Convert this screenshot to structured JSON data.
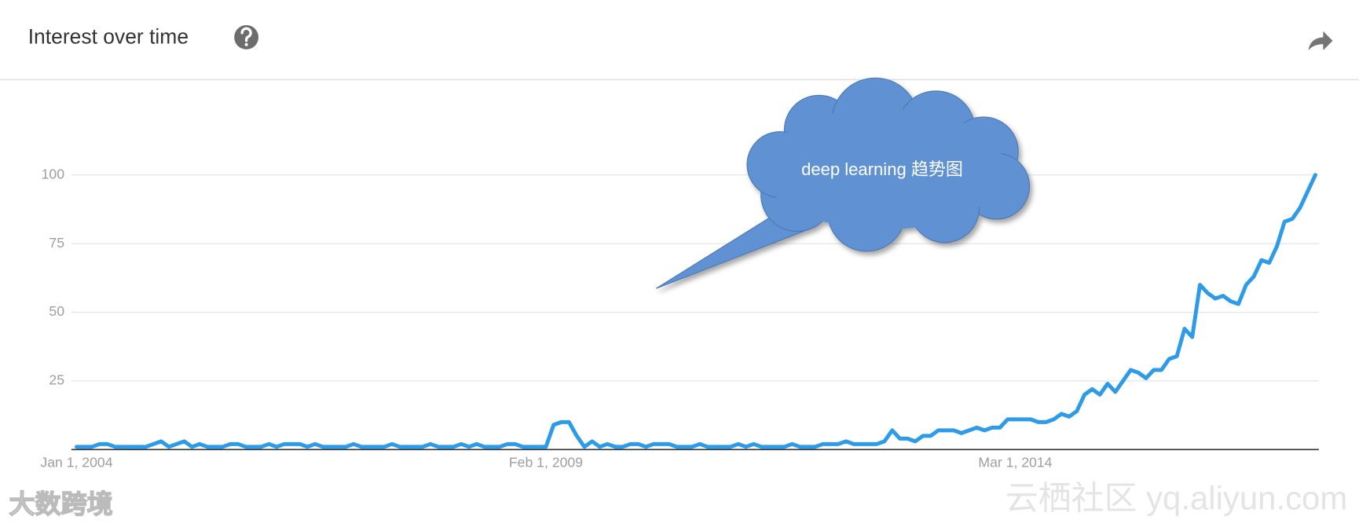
{
  "header": {
    "title": "Interest over time"
  },
  "chart_data": {
    "type": "line",
    "annotation": "deep learning 趋势图",
    "categories": [
      "Jan 1, 2004",
      null,
      null,
      null,
      null,
      null,
      null,
      null,
      null,
      null,
      null,
      null,
      null,
      null,
      null,
      null,
      null,
      null,
      null,
      null,
      null,
      null,
      null,
      null,
      null,
      null,
      null,
      null,
      null,
      null,
      null,
      null,
      null,
      null,
      null,
      null,
      null,
      null,
      null,
      null,
      null,
      null,
      null,
      null,
      null,
      null,
      null,
      null,
      null,
      null,
      null,
      null,
      null,
      null,
      null,
      null,
      null,
      null,
      null,
      null,
      null,
      "Feb 1, 2009",
      null,
      null,
      null,
      null,
      null,
      null,
      null,
      null,
      null,
      null,
      null,
      null,
      null,
      null,
      null,
      null,
      null,
      null,
      null,
      null,
      null,
      null,
      null,
      null,
      null,
      null,
      null,
      null,
      null,
      null,
      null,
      null,
      null,
      null,
      null,
      null,
      null,
      null,
      null,
      null,
      null,
      null,
      null,
      null,
      null,
      null,
      null,
      null,
      null,
      null,
      null,
      null,
      null,
      null,
      null,
      null,
      null,
      null,
      null,
      null,
      "Mar 1, 2014",
      null,
      null,
      null,
      null,
      null,
      null,
      null,
      null,
      null,
      null,
      null,
      null,
      null,
      null,
      null,
      null,
      null,
      null,
      null,
      null,
      null,
      null,
      null,
      null,
      null,
      null,
      null,
      null,
      null,
      null,
      null,
      null,
      null,
      null,
      null,
      null,
      null,
      null,
      null
    ],
    "values": [
      1,
      1,
      1,
      2,
      2,
      1,
      1,
      1,
      1,
      1,
      2,
      3,
      1,
      2,
      3,
      1,
      2,
      1,
      1,
      1,
      2,
      2,
      1,
      1,
      1,
      2,
      1,
      2,
      2,
      2,
      1,
      2,
      1,
      1,
      1,
      1,
      2,
      1,
      1,
      1,
      1,
      2,
      1,
      1,
      1,
      1,
      2,
      1,
      1,
      1,
      2,
      1,
      2,
      1,
      1,
      1,
      2,
      2,
      1,
      1,
      1,
      1,
      9,
      10,
      10,
      5,
      1,
      3,
      1,
      2,
      1,
      1,
      2,
      2,
      1,
      2,
      2,
      2,
      1,
      1,
      1,
      2,
      1,
      1,
      1,
      1,
      2,
      1,
      2,
      1,
      1,
      1,
      1,
      2,
      1,
      1,
      1,
      2,
      2,
      2,
      3,
      2,
      2,
      2,
      2,
      3,
      7,
      4,
      4,
      3,
      5,
      5,
      7,
      7,
      7,
      6,
      7,
      8,
      7,
      8,
      8,
      11,
      11,
      11,
      11,
      10,
      10,
      11,
      13,
      12,
      14,
      20,
      22,
      20,
      24,
      21,
      25,
      29,
      28,
      26,
      29,
      29,
      33,
      34,
      44,
      41,
      60,
      57,
      55,
      56,
      54,
      53,
      60,
      63,
      69,
      68,
      74,
      83,
      84,
      88,
      94,
      100
    ],
    "color": "#2d9be8",
    "ylim": [
      0,
      125
    ],
    "yticks": [
      25,
      50,
      75,
      100
    ],
    "grid": true
  },
  "watermarks": [
    "大数跨境",
    "云栖社区 yq.aliyun.com"
  ]
}
